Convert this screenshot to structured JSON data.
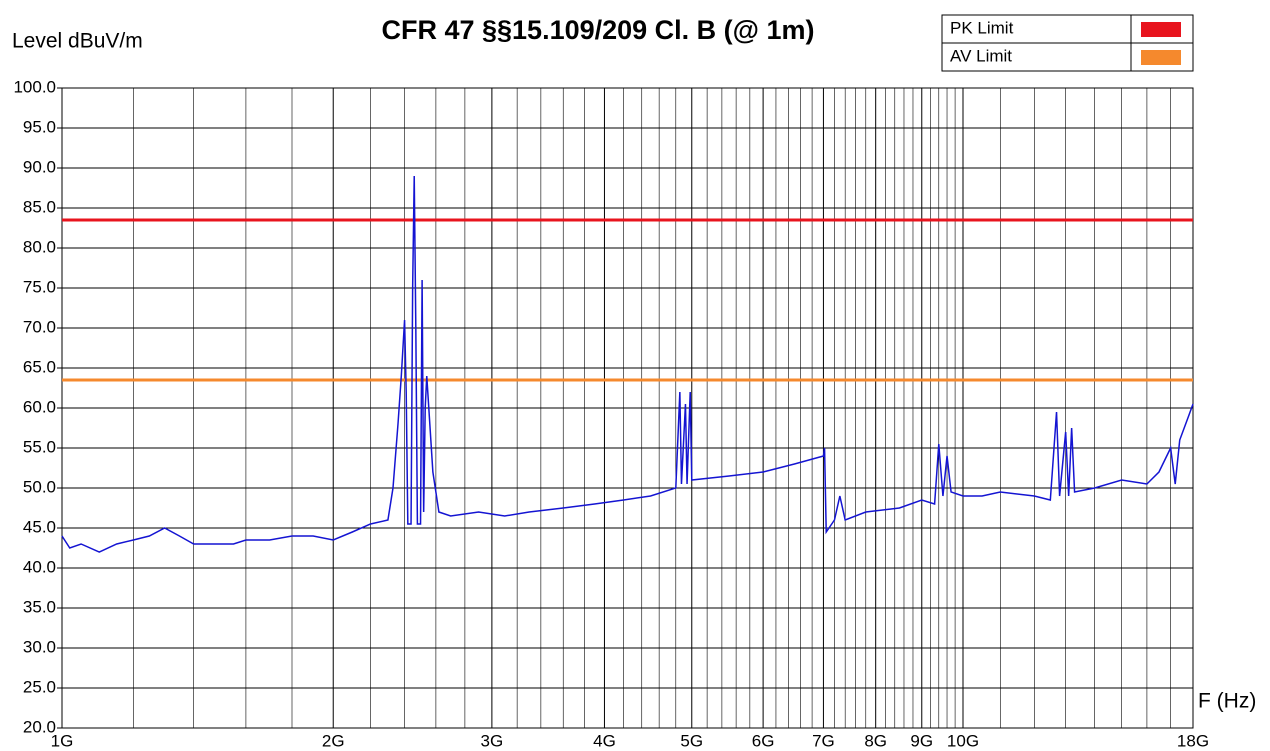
{
  "chart_data": {
    "type": "line",
    "title": "CFR 47 §§15.109/209 Cl. B (@ 1m)",
    "y_label": "Level  dBuV/m",
    "x_label": "F (Hz)",
    "xscale": "log",
    "xlim": [
      1000000000.0,
      18000000000.0
    ],
    "ylim": [
      20,
      100
    ],
    "xticks": [
      {
        "value": 1000000000.0,
        "label": "1G"
      },
      {
        "value": 2000000000.0,
        "label": "2G"
      },
      {
        "value": 3000000000.0,
        "label": "3G"
      },
      {
        "value": 4000000000.0,
        "label": "4G"
      },
      {
        "value": 5000000000.0,
        "label": "5G"
      },
      {
        "value": 6000000000.0,
        "label": "6G"
      },
      {
        "value": 7000000000.0,
        "label": "7G"
      },
      {
        "value": 8000000000.0,
        "label": "8G"
      },
      {
        "value": 9000000000.0,
        "label": "9G"
      },
      {
        "value": 10000000000.0,
        "label": "10G"
      },
      {
        "value": 18000000000.0,
        "label": "18G"
      }
    ],
    "x_minor_grid": [
      1200000000.0,
      1400000000.0,
      1600000000.0,
      1800000000.0,
      2200000000.0,
      2400000000.0,
      2600000000.0,
      2800000000.0,
      3200000000.0,
      3400000000.0,
      3600000000.0,
      3800000000.0,
      4200000000.0,
      4400000000.0,
      4600000000.0,
      4800000000.0,
      5200000000.0,
      5400000000.0,
      5600000000.0,
      5800000000.0,
      6200000000.0,
      6400000000.0,
      6600000000.0,
      6800000000.0,
      7200000000.0,
      7400000000.0,
      7600000000.0,
      7800000000.0,
      8200000000.0,
      8400000000.0,
      8600000000.0,
      8800000000.0,
      9200000000.0,
      9400000000.0,
      9600000000.0,
      9800000000.0,
      11000000000.0,
      12000000000.0,
      13000000000.0,
      14000000000.0,
      15000000000.0,
      16000000000.0,
      17000000000.0
    ],
    "yticks": [
      {
        "value": 20,
        "label": "20.0"
      },
      {
        "value": 25,
        "label": "25.0"
      },
      {
        "value": 30,
        "label": "30.0"
      },
      {
        "value": 35,
        "label": "35.0"
      },
      {
        "value": 40,
        "label": "40.0"
      },
      {
        "value": 45,
        "label": "45.0"
      },
      {
        "value": 50,
        "label": "50.0"
      },
      {
        "value": 55,
        "label": "55.0"
      },
      {
        "value": 60,
        "label": "60.0"
      },
      {
        "value": 65,
        "label": "65.0"
      },
      {
        "value": 70,
        "label": "70.0"
      },
      {
        "value": 75,
        "label": "75.0"
      },
      {
        "value": 80,
        "label": "80.0"
      },
      {
        "value": 85,
        "label": "85.0"
      },
      {
        "value": 90,
        "label": "90.0"
      },
      {
        "value": 95,
        "label": "95.0"
      },
      {
        "value": 100,
        "label": "100.0"
      }
    ],
    "grid": true,
    "legend": "top-right",
    "series": [
      {
        "name": "PK Limit",
        "color": "#e8141e",
        "x": [
          1000000000.0,
          18000000000.0
        ],
        "values": [
          83.5,
          83.5
        ]
      },
      {
        "name": "AV Limit",
        "color": "#f5892d",
        "x": [
          1000000000.0,
          18000000000.0
        ],
        "values": [
          63.5,
          63.5
        ]
      },
      {
        "color": "#1414d2",
        "x": [
          1000000000.0,
          1020000000.0,
          1050000000.0,
          1100000000.0,
          1150000000.0,
          1200000000.0,
          1250000000.0,
          1300000000.0,
          1350000000.0,
          1400000000.0,
          1500000000.0,
          1550000000.0,
          1600000000.0,
          1700000000.0,
          1800000000.0,
          1900000000.0,
          2000000000.0,
          2100000000.0,
          2200000000.0,
          2300000000.0,
          2330000000.0,
          2360000000.0,
          2380000000.0,
          2400000000.0,
          2410000000.0,
          2420000000.0,
          2440000000.0,
          2450000000.0,
          2460000000.0,
          2470000000.0,
          2480000000.0,
          2500000000.0,
          2510000000.0,
          2520000000.0,
          2530000000.0,
          2540000000.0,
          2560000000.0,
          2580000000.0,
          2620000000.0,
          2700000000.0,
          2900000000.0,
          3100000000.0,
          3300000000.0,
          3600000000.0,
          3900000000.0,
          4200000000.0,
          4500000000.0,
          4800000000.0,
          4850000000.0,
          4870000000.0,
          4920000000.0,
          4940000000.0,
          4980000000.0,
          5000000000.0,
          5500000000.0,
          6000000000.0,
          6500000000.0,
          7000000000.0,
          7020000000.0,
          7050000000.0,
          7200000000.0,
          7300000000.0,
          7400000000.0,
          7800000000.0,
          8500000000.0,
          9000000000.0,
          9300000000.0,
          9400000000.0,
          9500000000.0,
          9600000000.0,
          9700000000.0,
          10000000000.0,
          10500000000.0,
          11000000000.0,
          12000000000.0,
          12500000000.0,
          12700000000.0,
          12800000000.0,
          13000000000.0,
          13100000000.0,
          13200000000.0,
          13300000000.0,
          14000000000.0,
          15000000000.0,
          16000000000.0,
          16500000000.0,
          17000000000.0,
          17200000000.0,
          17400000000.0,
          17800000000.0,
          18000000000.0
        ],
        "values": [
          44,
          42.5,
          43,
          42,
          43,
          43.5,
          44,
          45,
          44,
          43,
          43,
          43,
          43.5,
          43.5,
          44,
          44,
          43.5,
          44.5,
          45.5,
          46,
          50,
          58,
          64,
          71,
          62,
          45.5,
          45.5,
          75,
          89,
          70,
          45.5,
          45.5,
          76,
          47,
          60,
          64,
          58,
          52,
          47,
          46.5,
          47,
          46.5,
          47,
          47.5,
          48,
          48.5,
          49,
          50,
          62,
          50.5,
          60.5,
          50.5,
          62,
          51,
          51.5,
          52,
          53,
          54,
          55,
          44.5,
          46,
          49,
          46,
          47,
          47.5,
          48.5,
          48,
          55.5,
          49,
          54,
          49.5,
          49,
          49,
          49.5,
          49,
          48.5,
          59.5,
          49,
          57,
          49,
          57.5,
          49.5,
          50,
          51,
          50.5,
          52,
          55,
          50.5,
          56,
          59,
          60.5
        ]
      }
    ]
  }
}
